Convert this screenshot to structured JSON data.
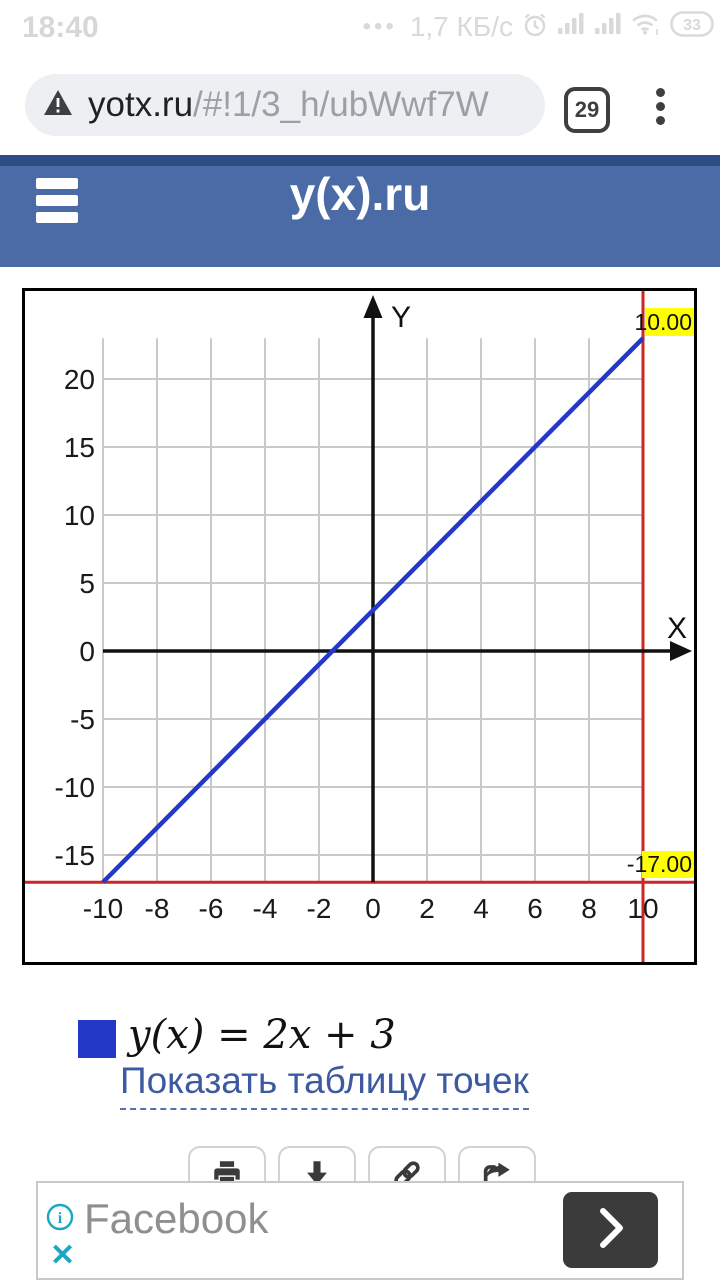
{
  "status_bar": {
    "time": "18:40",
    "menu_dots": "•••",
    "net_speed": "1,7 КБ/с",
    "battery_percent": "33",
    "icons": [
      "alarm-icon",
      "cell-signal-icon",
      "cell-signal-icon",
      "wifi-icon",
      "battery-icon"
    ]
  },
  "browser_bar": {
    "domain": "yotx.ru",
    "path": "/#!1/3_h/ubWwf7W",
    "tab_count": "29"
  },
  "app_header": {
    "title": "y(x).ru"
  },
  "chart_data": {
    "type": "line",
    "title": "",
    "xlabel": "X",
    "ylabel": "Y",
    "xlim": [
      -10,
      10
    ],
    "ylim": [
      -17,
      23
    ],
    "grid": true,
    "grid_color": "#c9c9c9",
    "x_ticks": [
      -10,
      -8,
      -6,
      -4,
      -2,
      0,
      2,
      4,
      6,
      8,
      10
    ],
    "y_ticks": [
      20,
      15,
      10,
      5,
      0,
      -5,
      -10,
      -15
    ],
    "series": [
      {
        "name": "y(x) = 2x + 3",
        "color": "#2438c8",
        "slope": 2,
        "intercept": 3,
        "points": [
          [
            -10,
            -17
          ],
          [
            10,
            23
          ]
        ]
      }
    ],
    "boundary_lines": {
      "vertical_x": 10,
      "horizontal_y": -17,
      "color": "#cc2626"
    },
    "boundary_labels": [
      {
        "text": "10.00",
        "position": "top-right",
        "bg": "#ffff00"
      },
      {
        "text": "-17.00",
        "position": "bottom-right",
        "bg": "#ffff00"
      }
    ]
  },
  "legend": {
    "swatch_color": "#2438c8",
    "formula": "y(x) = 2x + 3"
  },
  "points_table_link": {
    "label": "Показать таблицу точек"
  },
  "toolbar": {
    "buttons": [
      {
        "icon": "print-icon"
      },
      {
        "icon": "download-icon"
      },
      {
        "icon": "link-icon"
      },
      {
        "icon": "share-icon"
      }
    ]
  },
  "ad_banner": {
    "advertiser": "Facebook",
    "info_symbol": "i",
    "close_symbol": "✕",
    "accent_color": "#18a7c4",
    "cta_icon": "chevron-right-icon"
  }
}
